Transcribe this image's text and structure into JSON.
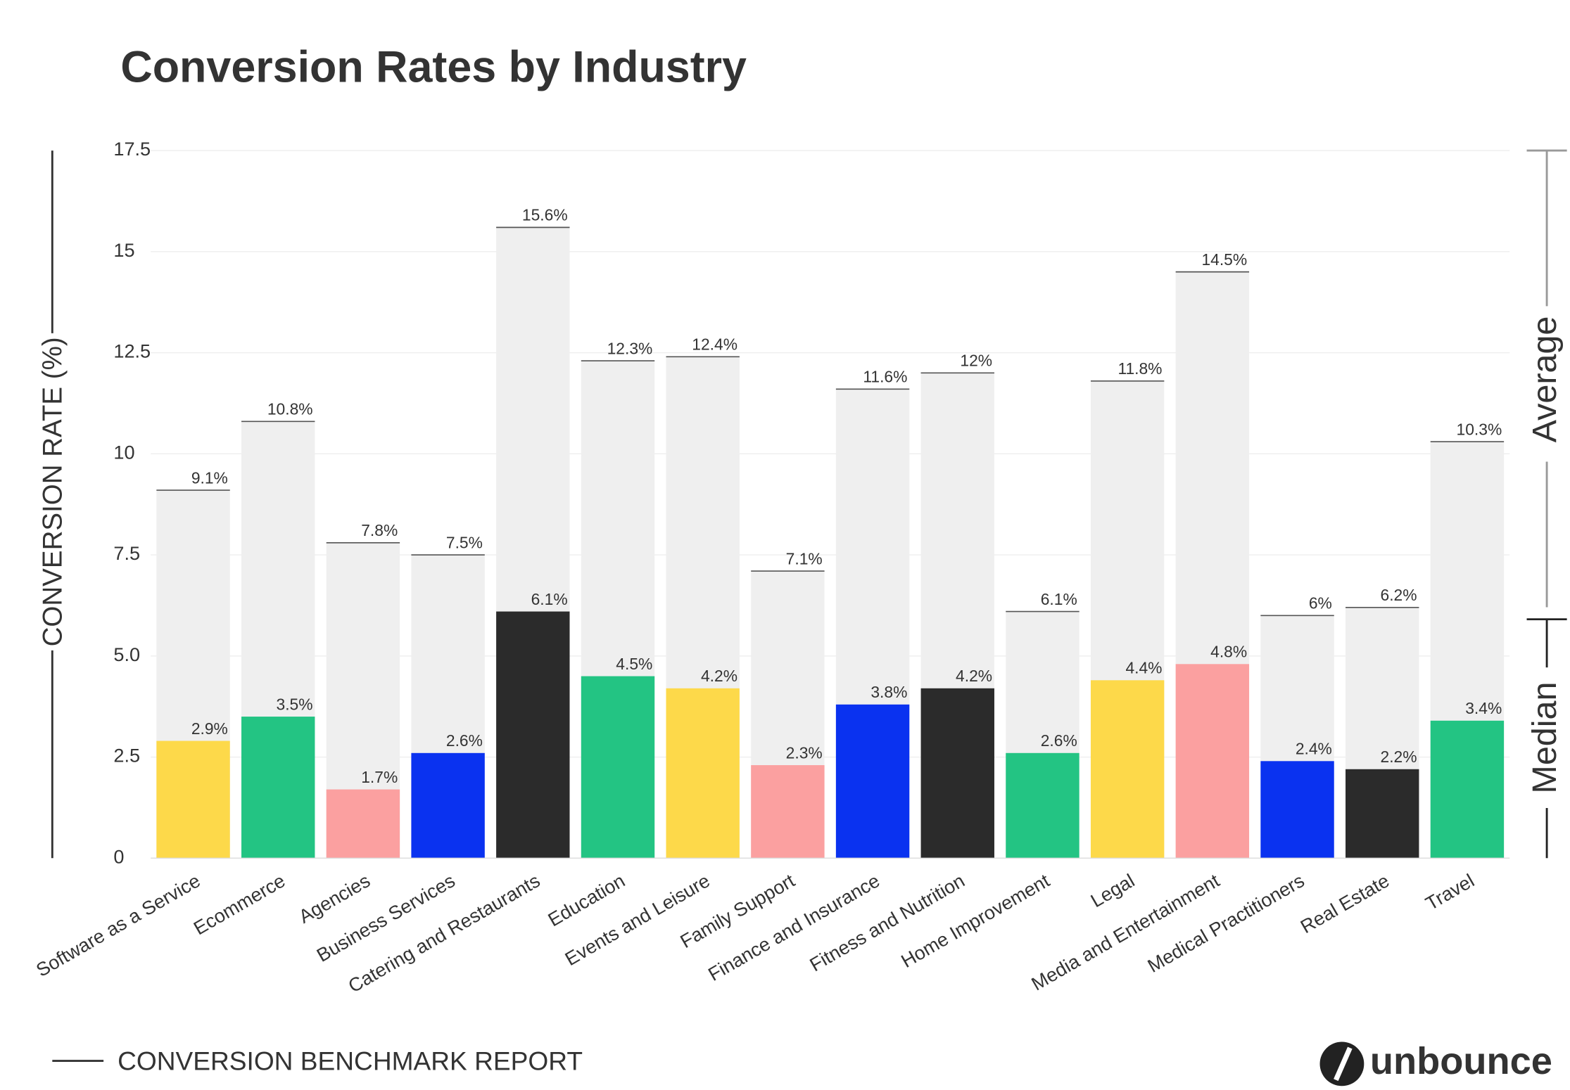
{
  "chart_data": {
    "type": "bar",
    "title": "Conversion Rates by Industry",
    "y_label": "CONVERSION RATE (%)",
    "footer": "CONVERSION BENCHMARK REPORT",
    "brand": "unbounce",
    "categories": [
      "Software as a Service",
      "Ecommerce",
      "Agencies",
      "Business Services",
      "Catering and Restaurants",
      "Education",
      "Events and Leisure",
      "Family Support",
      "Finance and Insurance",
      "Fitness and Nutrition",
      "Home Improvement",
      "Legal",
      "Media and Entertainment",
      "Medical Practitioners",
      "Real Estate",
      "Travel"
    ],
    "series": [
      {
        "name": "Average",
        "color": "#efefef",
        "values": [
          9.1,
          10.8,
          7.8,
          7.5,
          15.6,
          12.3,
          12.4,
          7.1,
          11.6,
          12,
          6.1,
          11.8,
          14.5,
          6,
          6.2,
          10.3
        ],
        "value_labels": [
          "9.1%",
          "10.8%",
          "7.8%",
          "7.5%",
          "15.6%",
          "12.3%",
          "12.4%",
          "7.1%",
          "11.6%",
          "12%",
          "6.1%",
          "11.8%",
          "14.5%",
          "6%",
          "6.2%",
          "10.3%"
        ]
      },
      {
        "name": "Median",
        "color": "#222222",
        "colors": [
          "#fdd94a",
          "#23c483",
          "#fba0a0",
          "#0a32f0",
          "#2b2b2b",
          "#23c483",
          "#fdd94a",
          "#fba0a0",
          "#0a32f0",
          "#2b2b2b",
          "#23c483",
          "#fdd94a",
          "#fba0a0",
          "#0a32f0",
          "#2b2b2b",
          "#23c483"
        ],
        "values": [
          2.9,
          3.5,
          1.7,
          2.6,
          6.1,
          4.5,
          4.2,
          2.3,
          3.8,
          4.2,
          2.6,
          4.4,
          4.8,
          2.4,
          2.2,
          3.4
        ],
        "value_labels": [
          "2.9%",
          "3.5%",
          "1.7%",
          "2.6%",
          "6.1%",
          "4.5%",
          "4.2%",
          "2.3%",
          "3.8%",
          "4.2%",
          "2.6%",
          "4.4%",
          "4.8%",
          "2.4%",
          "2.2%",
          "3.4%"
        ]
      }
    ],
    "ylim": [
      0,
      17.5
    ],
    "yticks": [
      0,
      2.5,
      {
        "value": 5,
        "label": "5.0"
      },
      7.5,
      10,
      12.5,
      15,
      17.5
    ],
    "grid": true
  }
}
